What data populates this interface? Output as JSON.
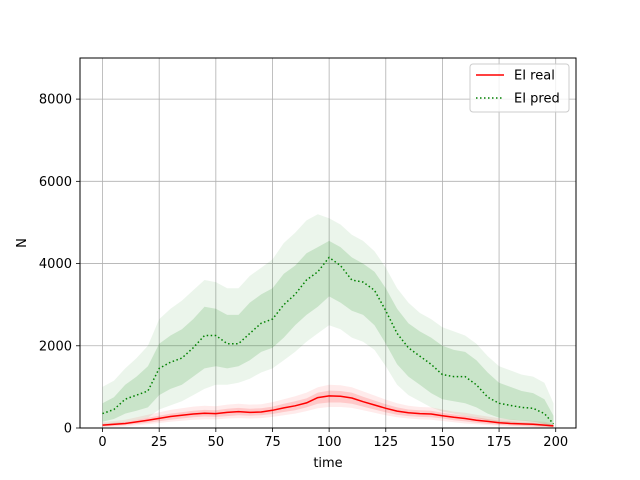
{
  "chart_data": {
    "type": "line",
    "title": "",
    "xlabel": "time",
    "ylabel": "N",
    "xlim": [
      -9.95,
      208.95
    ],
    "ylim": [
      0,
      9000
    ],
    "xticks": [
      0,
      25,
      50,
      75,
      100,
      125,
      150,
      175,
      200
    ],
    "yticks": [
      0,
      2000,
      4000,
      6000,
      8000
    ],
    "grid": true,
    "legend_position": "top-right",
    "series": [
      {
        "name": "EI real",
        "color": "#ff0000",
        "style": "solid",
        "band_color": "#ff0000",
        "x": [
          0,
          10,
          20,
          30,
          40,
          45,
          50,
          55,
          60,
          65,
          70,
          75,
          80,
          85,
          90,
          95,
          100,
          105,
          110,
          115,
          120,
          125,
          130,
          135,
          140,
          145,
          150,
          155,
          160,
          165,
          170,
          175,
          180,
          185,
          190,
          195,
          199
        ],
        "values": [
          70,
          110,
          190,
          280,
          340,
          360,
          350,
          380,
          400,
          380,
          390,
          430,
          490,
          540,
          610,
          740,
          780,
          770,
          730,
          640,
          560,
          480,
          410,
          370,
          350,
          340,
          300,
          260,
          230,
          190,
          160,
          130,
          110,
          100,
          90,
          70,
          50
        ],
        "inner_lower": [
          40,
          70,
          130,
          200,
          260,
          280,
          270,
          290,
          310,
          300,
          310,
          340,
          390,
          430,
          500,
          590,
          620,
          620,
          590,
          520,
          450,
          380,
          320,
          290,
          270,
          260,
          230,
          190,
          160,
          130,
          100,
          80,
          60,
          50,
          40,
          30,
          20
        ],
        "inner_upper": [
          100,
          150,
          250,
          350,
          420,
          440,
          430,
          470,
          490,
          470,
          480,
          520,
          590,
          650,
          720,
          860,
          910,
          900,
          860,
          760,
          670,
          580,
          500,
          450,
          430,
          420,
          370,
          330,
          300,
          260,
          220,
          180,
          160,
          140,
          130,
          110,
          80
        ],
        "outer_lower": [
          20,
          40,
          90,
          150,
          200,
          210,
          210,
          230,
          240,
          230,
          240,
          270,
          310,
          350,
          410,
          480,
          510,
          510,
          490,
          430,
          370,
          310,
          260,
          230,
          210,
          200,
          170,
          140,
          110,
          90,
          70,
          50,
          40,
          30,
          20,
          10,
          10
        ],
        "outer_upper": [
          140,
          200,
          320,
          440,
          520,
          540,
          530,
          570,
          590,
          570,
          580,
          630,
          700,
          770,
          860,
          990,
          1050,
          1040,
          990,
          890,
          790,
          690,
          600,
          540,
          510,
          500,
          450,
          400,
          370,
          320,
          280,
          240,
          210,
          190,
          170,
          150,
          110
        ]
      },
      {
        "name": "EI pred",
        "color": "#008000",
        "style": "dotted",
        "band_color": "#008000",
        "x": [
          0,
          5,
          10,
          15,
          20,
          25,
          30,
          35,
          40,
          45,
          50,
          55,
          60,
          65,
          70,
          75,
          80,
          85,
          90,
          95,
          100,
          105,
          110,
          115,
          120,
          125,
          130,
          135,
          140,
          145,
          150,
          155,
          160,
          165,
          170,
          175,
          180,
          185,
          190,
          195,
          199
        ],
        "values": [
          350,
          450,
          700,
          800,
          900,
          1450,
          1600,
          1700,
          1950,
          2250,
          2250,
          2050,
          2050,
          2300,
          2550,
          2650,
          3000,
          3250,
          3600,
          3800,
          4150,
          3950,
          3600,
          3550,
          3350,
          2850,
          2300,
          1950,
          1750,
          1550,
          1300,
          1250,
          1250,
          1050,
          750,
          600,
          550,
          500,
          480,
          350,
          100
        ],
        "inner_lower": [
          150,
          220,
          350,
          420,
          500,
          800,
          950,
          1050,
          1250,
          1450,
          1500,
          1450,
          1500,
          1650,
          1850,
          1950,
          2200,
          2500,
          2750,
          2950,
          3200,
          3050,
          2850,
          2750,
          2500,
          2050,
          1550,
          1250,
          1050,
          850,
          700,
          650,
          600,
          500,
          350,
          250,
          200,
          180,
          150,
          100,
          50
        ],
        "inner_upper": [
          600,
          750,
          1050,
          1250,
          1500,
          2050,
          2250,
          2400,
          2650,
          2950,
          2900,
          2750,
          2750,
          3050,
          3250,
          3400,
          3750,
          3950,
          4250,
          4400,
          4550,
          4400,
          4150,
          4000,
          3800,
          3400,
          2900,
          2550,
          2350,
          2200,
          2000,
          1900,
          1850,
          1650,
          1350,
          1100,
          1000,
          900,
          850,
          700,
          300
        ],
        "outer_lower": [
          50,
          80,
          150,
          200,
          250,
          450,
          550,
          650,
          800,
          950,
          1050,
          1050,
          1100,
          1200,
          1350,
          1450,
          1650,
          1850,
          2100,
          2300,
          2500,
          2400,
          2200,
          2100,
          1900,
          1500,
          1050,
          800,
          650,
          500,
          400,
          350,
          300,
          250,
          180,
          120,
          100,
          80,
          60,
          40,
          20
        ],
        "outer_upper": [
          1000,
          1150,
          1450,
          1700,
          2000,
          2650,
          2900,
          3100,
          3350,
          3600,
          3550,
          3400,
          3400,
          3700,
          3900,
          4100,
          4500,
          4750,
          5050,
          5200,
          5100,
          4950,
          4700,
          4550,
          4300,
          3900,
          3400,
          3050,
          2800,
          2650,
          2450,
          2350,
          2250,
          2050,
          1750,
          1500,
          1400,
          1300,
          1250,
          1100,
          600
        ]
      }
    ]
  }
}
